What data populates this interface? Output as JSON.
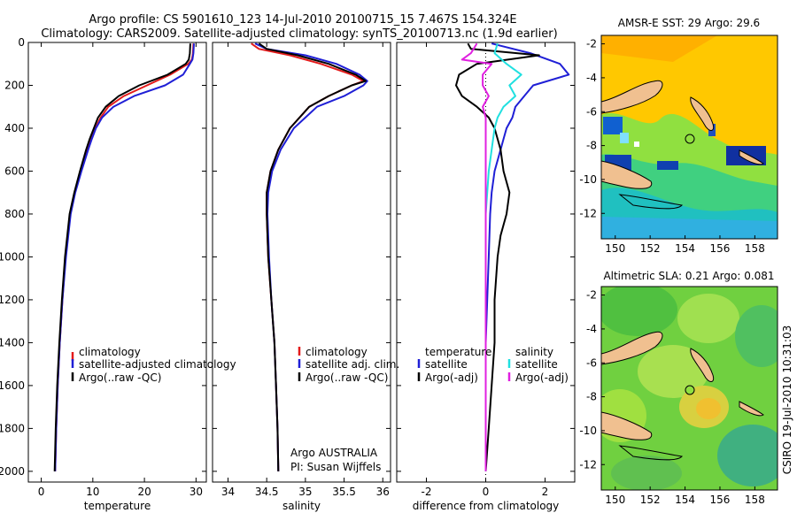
{
  "header": {
    "title_line1": "Argo profile: CS 5901610_123 14-Jul-2010 20100715_15 7.467S 154.324E",
    "title_line2": "Climatology: CARS2009. Satellite-adjusted climatology: synTS_20100713.nc (1.9d earlier)"
  },
  "side_stamp": "CSIRO 19-Jul-2010 10:31:03",
  "colors": {
    "red": "#e41a1a",
    "blue": "#1f1fd6",
    "black": "#000000",
    "cyan": "#20e0e0",
    "magenta": "#e020e0",
    "land": "#f0c090"
  },
  "chart_data": [
    {
      "id": "temperature",
      "type": "line",
      "xlabel": "temperature",
      "ylabel": "",
      "xlim": [
        -2.5,
        32
      ],
      "ylim": [
        2050,
        0
      ],
      "xticks": [
        0,
        10,
        20,
        30
      ],
      "yticks": [
        0,
        200,
        400,
        600,
        800,
        1000,
        1200,
        1400,
        1600,
        1800,
        2000
      ],
      "legend": {
        "position": "lower-right",
        "entries": [
          "climatology",
          "satellite-adjusted climatology",
          "Argo(..raw -QC)"
        ]
      },
      "series": [
        {
          "name": "climatology",
          "color": "red",
          "depth": [
            5,
            50,
            80,
            100,
            150,
            200,
            250,
            300,
            350,
            400,
            450,
            500,
            600,
            700,
            800,
            1000,
            1200,
            1400,
            1600,
            1800,
            2000
          ],
          "values": [
            29.5,
            29.4,
            29.2,
            28.5,
            25.0,
            20.5,
            16.0,
            13.0,
            11.5,
            10.5,
            9.6,
            8.9,
            7.6,
            6.5,
            5.6,
            4.7,
            4.1,
            3.6,
            3.2,
            2.9,
            2.7
          ]
        },
        {
          "name": "satellite-adjusted climatology",
          "color": "blue",
          "depth": [
            5,
            50,
            80,
            100,
            150,
            200,
            250,
            300,
            350,
            400,
            450,
            500,
            600,
            700,
            800,
            1000,
            1200,
            1400,
            1600,
            1800,
            2000
          ],
          "values": [
            29.6,
            29.5,
            29.3,
            28.8,
            27.5,
            24.0,
            18.0,
            14.0,
            11.8,
            10.6,
            9.8,
            9.1,
            7.8,
            6.6,
            5.7,
            4.8,
            4.1,
            3.6,
            3.2,
            2.9,
            2.7
          ]
        },
        {
          "name": "Argo(..raw -QC)",
          "color": "black",
          "depth": [
            5,
            50,
            80,
            100,
            150,
            200,
            250,
            300,
            350,
            400,
            450,
            500,
            600,
            700,
            800,
            1000,
            1200,
            1400,
            1600,
            1800,
            2000
          ],
          "values": [
            28.9,
            28.8,
            28.6,
            28.0,
            24.5,
            19.0,
            15.0,
            12.5,
            11.0,
            10.2,
            9.4,
            8.7,
            7.5,
            6.4,
            5.5,
            4.6,
            4.0,
            3.5,
            3.1,
            2.8,
            2.6
          ]
        }
      ]
    },
    {
      "id": "salinity",
      "type": "line",
      "xlabel": "salinity",
      "ylabel": "",
      "xlim": [
        33.8,
        36.1
      ],
      "ylim": [
        2050,
        0
      ],
      "xticks": [
        34,
        34.5,
        35,
        35.5,
        36
      ],
      "legend": {
        "position": "lower-right",
        "entries": [
          "climatology",
          "satellite adj. clim.",
          "Argo(..raw -QC)"
        ]
      },
      "annotation": [
        "Argo AUSTRALIA",
        "PI: Susan Wijffels"
      ],
      "series": [
        {
          "name": "climatology",
          "color": "red",
          "depth": [
            5,
            30,
            60,
            100,
            150,
            180,
            200,
            250,
            300,
            400,
            500,
            600,
            700,
            800,
            1000,
            1200,
            1400,
            1600,
            1800,
            2000
          ],
          "values": [
            34.3,
            34.4,
            34.8,
            35.2,
            35.6,
            35.75,
            35.6,
            35.3,
            35.05,
            34.8,
            34.65,
            34.55,
            34.5,
            34.5,
            34.52,
            34.56,
            34.6,
            34.62,
            34.64,
            34.65
          ]
        },
        {
          "name": "satellite adj. clim.",
          "color": "blue",
          "depth": [
            5,
            30,
            60,
            100,
            150,
            180,
            200,
            250,
            300,
            400,
            500,
            600,
            700,
            800,
            1000,
            1200,
            1400,
            1600,
            1800,
            2000
          ],
          "values": [
            34.35,
            34.5,
            35.0,
            35.4,
            35.7,
            35.8,
            35.75,
            35.5,
            35.15,
            34.85,
            34.68,
            34.57,
            34.52,
            34.51,
            34.53,
            34.56,
            34.6,
            34.62,
            34.64,
            34.65
          ]
        },
        {
          "name": "Argo(..raw -QC)",
          "color": "black",
          "depth": [
            5,
            30,
            60,
            100,
            150,
            180,
            200,
            250,
            300,
            400,
            500,
            600,
            700,
            800,
            1000,
            1200,
            1400,
            1600,
            1800,
            2000
          ],
          "values": [
            34.4,
            34.5,
            34.9,
            35.3,
            35.65,
            35.78,
            35.6,
            35.3,
            35.05,
            34.8,
            34.65,
            34.55,
            34.5,
            34.5,
            34.52,
            34.56,
            34.6,
            34.62,
            34.64,
            34.65
          ]
        }
      ]
    },
    {
      "id": "difference",
      "type": "line",
      "xlabel": "difference from climatology",
      "ylabel": "",
      "xlim": [
        -3.0,
        3.0
      ],
      "ylim": [
        2050,
        0
      ],
      "xticks": [
        -2,
        0,
        2
      ],
      "legend": {
        "position": "lower",
        "headers": [
          "temperature",
          "salinity"
        ],
        "entries": [
          "satellite",
          "Argo(-adj)",
          "satellite",
          "Argo(-adj)"
        ]
      },
      "series": [
        {
          "name": "temperature satellite",
          "color": "blue",
          "depth": [
            5,
            50,
            100,
            150,
            200,
            250,
            300,
            350,
            400,
            450,
            500,
            600,
            700,
            800,
            1000,
            1200,
            1400,
            1600,
            1800,
            2000
          ],
          "values": [
            0.2,
            1.5,
            2.5,
            2.8,
            1.6,
            1.3,
            1.0,
            0.9,
            0.7,
            0.6,
            0.5,
            0.3,
            0.2,
            0.15,
            0.1,
            0.05,
            0.0,
            0.0,
            0.0,
            0.0
          ]
        },
        {
          "name": "temperature Argo(-adj)",
          "color": "black",
          "depth": [
            5,
            30,
            60,
            100,
            150,
            200,
            250,
            300,
            350,
            400,
            450,
            500,
            600,
            700,
            800,
            900,
            1000,
            1200,
            1400,
            1600,
            1800,
            2000
          ],
          "values": [
            -0.6,
            -0.5,
            1.8,
            -0.3,
            -0.9,
            -1.0,
            -0.8,
            -0.3,
            0.1,
            0.3,
            0.4,
            0.5,
            0.6,
            0.8,
            0.7,
            0.5,
            0.4,
            0.3,
            0.3,
            0.2,
            0.1,
            0.0
          ]
        },
        {
          "name": "salinity satellite",
          "color": "cyan",
          "depth": [
            5,
            50,
            100,
            150,
            200,
            250,
            300,
            350,
            400,
            500,
            600,
            800,
            1000,
            1200,
            1400,
            1600,
            1800,
            2000
          ],
          "values": [
            0.4,
            0.3,
            0.7,
            1.2,
            0.8,
            1.0,
            0.6,
            0.4,
            0.3,
            0.2,
            0.1,
            0.0,
            0.0,
            0.0,
            0.0,
            0.0,
            0.0,
            0.0
          ]
        },
        {
          "name": "salinity Argo(-adj)",
          "color": "magenta",
          "depth": [
            5,
            50,
            80,
            100,
            150,
            200,
            250,
            300,
            350,
            400,
            500,
            600,
            800,
            1000,
            1200,
            1400,
            1600,
            1800,
            2000
          ],
          "values": [
            -0.3,
            -0.5,
            -0.8,
            0.2,
            -0.1,
            -0.1,
            0.1,
            -0.1,
            0.0,
            0.0,
            0.0,
            0.0,
            0.0,
            0.0,
            0.0,
            0.0,
            0.0,
            0.0,
            0.0
          ]
        }
      ]
    },
    {
      "id": "sst_map",
      "type": "heatmap",
      "title": "AMSR-E SST: 29 Argo: 29.6",
      "xlim": [
        149.2,
        159.3
      ],
      "ylim": [
        -13.5,
        -1.5
      ],
      "xticks": [
        150,
        152,
        154,
        156,
        158
      ],
      "yticks": [
        -2,
        -4,
        -6,
        -8,
        -10,
        -12
      ],
      "marker": {
        "lon": 154.324,
        "lat": -7.467
      }
    },
    {
      "id": "sla_map",
      "type": "heatmap",
      "title": "Altimetric SLA: 0.21 Argo: 0.081",
      "xlim": [
        149.2,
        159.3
      ],
      "ylim": [
        -13.5,
        -1.5
      ],
      "xticks": [
        150,
        152,
        154,
        156,
        158
      ],
      "yticks": [
        -2,
        -4,
        -6,
        -8,
        -10,
        -12
      ],
      "marker": {
        "lon": 154.324,
        "lat": -7.467
      }
    }
  ]
}
